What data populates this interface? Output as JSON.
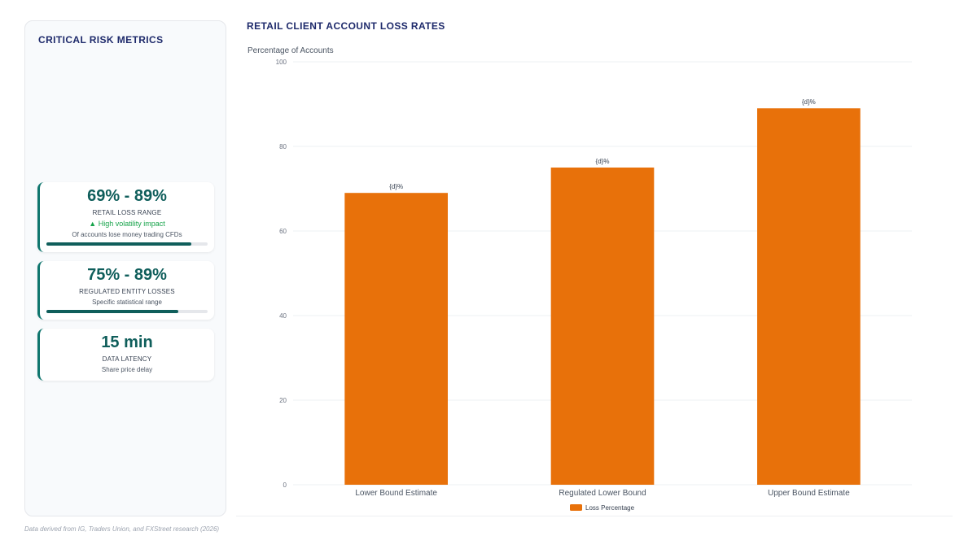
{
  "sidebar": {
    "title": "CRITICAL RISK METRICS",
    "metrics": [
      {
        "value": "69% - 89%",
        "label": "RETAIL LOSS RANGE",
        "trend": "▲ High volatility impact",
        "subtext": "Of accounts lose money trading CFDs",
        "progress": 0.9
      },
      {
        "value": "75% - 89%",
        "label": "REGULATED ENTITY LOSSES",
        "subtext": "Specific statistical range",
        "progress": 0.82
      },
      {
        "value": "15 min",
        "label": "DATA LATENCY",
        "subtext": "Share price delay"
      }
    ]
  },
  "chart_data": {
    "type": "bar",
    "title": "RETAIL CLIENT ACCOUNT LOSS RATES",
    "ylabel": "Percentage of Accounts",
    "xlabel": "",
    "categories": [
      "Lower Bound Estimate",
      "Regulated Lower Bound",
      "Upper Bound Estimate"
    ],
    "series": [
      {
        "name": "Loss Percentage",
        "values": [
          69,
          75,
          89
        ],
        "color": "#e8710a"
      }
    ],
    "data_labels": [
      "{d}%",
      "{d}%",
      "{d}%"
    ],
    "ylim": [
      0,
      100
    ],
    "yticks": [
      0,
      20,
      40,
      60,
      80,
      100
    ],
    "grid": true,
    "legend_position": "bottom-center"
  },
  "footnote": "Data derived from IG, Traders Union, and FXStreet research (2026)",
  "colors": {
    "accent_teal": "#0f5e5b",
    "bar": "#e8710a",
    "title_navy": "#1e2a6b",
    "trend_green": "#16a34a"
  }
}
